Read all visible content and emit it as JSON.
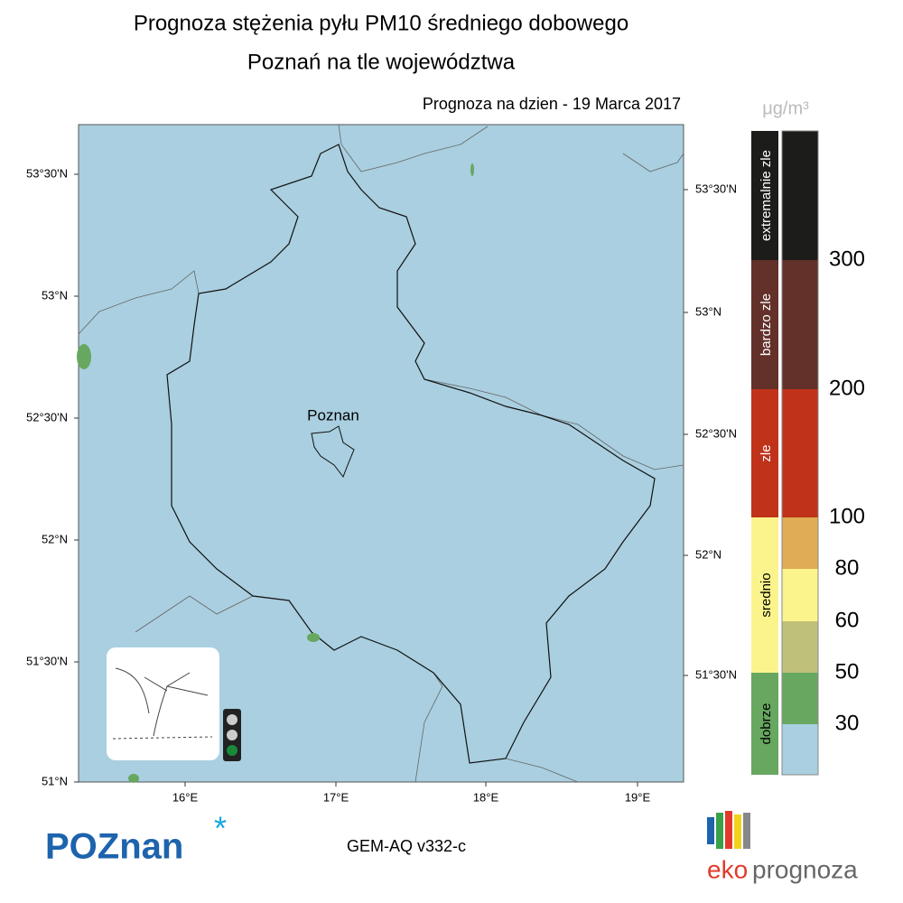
{
  "header": {
    "title": "Prognoza stężenia pyłu PM10 średniego dobowego",
    "subtitle": "Poznań na tle województwa",
    "date": "Prognoza na dzien -  19 Marca 2017"
  },
  "map": {
    "city": "Poznan",
    "lat_left": [
      "53°30'N",
      "53°N",
      "52°30'N",
      "52°N",
      "51°30'N",
      "51°N"
    ],
    "lat_right": [
      "53°30'N",
      "53°N",
      "52°30'N",
      "52°N",
      "51°30'N"
    ],
    "lon_bottom": [
      "16°E",
      "17°E",
      "18°E",
      "19°E"
    ]
  },
  "legend": {
    "unit": "μg/m³",
    "categories": [
      {
        "label": "extremalnie zle",
        "color": "#1c1c1a"
      },
      {
        "label": "bardzo zle",
        "color": "#63312a"
      },
      {
        "label": "zle",
        "color": "#c0321a"
      },
      {
        "label": "srednio",
        "color": "#fbf48c"
      },
      {
        "label": "dobrze",
        "color": "#67a760"
      }
    ],
    "levels": [
      {
        "color": "#1c1c1a"
      },
      {
        "color": "#63312a"
      },
      {
        "color": "#c0321a"
      },
      {
        "color": "#e0ac55"
      },
      {
        "color": "#fbf48c"
      },
      {
        "color": "#bfc07a"
      },
      {
        "color": "#67a760"
      },
      {
        "color": "#a9cfe0"
      }
    ],
    "thresholds": [
      300,
      200,
      100,
      80,
      60,
      50,
      30
    ]
  },
  "footer": {
    "logo": "POZnan",
    "model": "GEM-AQ v332-c",
    "brand_left": "eko",
    "brand_right": "prognoza"
  }
}
